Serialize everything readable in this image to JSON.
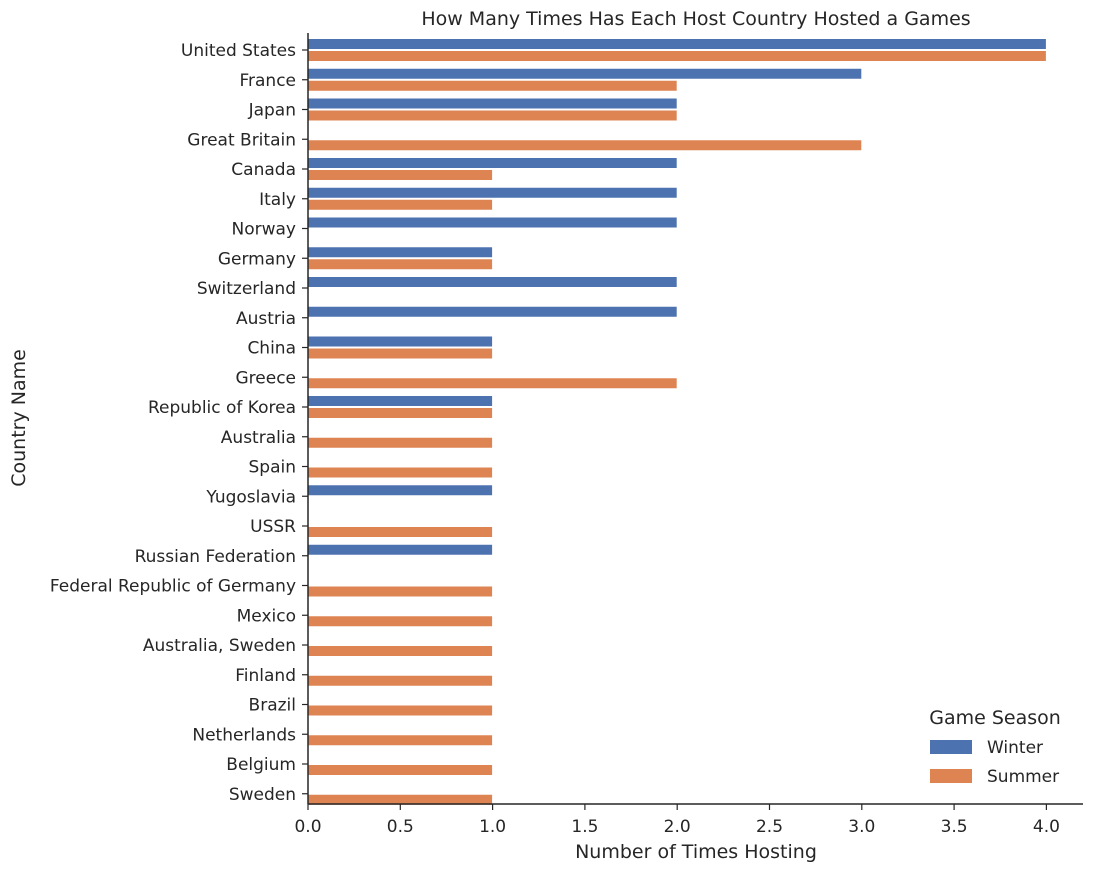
{
  "chart_data": {
    "type": "bar",
    "orientation": "horizontal",
    "title": "How Many Times Has Each Host Country Hosted a Games",
    "xlabel": "Number of Times Hosting",
    "ylabel": "Country Name",
    "xlim": [
      0,
      4.2
    ],
    "xticks": [
      "0.0",
      "0.5",
      "1.0",
      "1.5",
      "2.0",
      "2.5",
      "3.0",
      "3.5",
      "4.0"
    ],
    "grid": false,
    "legend": {
      "title": "Game Season",
      "placement": "lower-right"
    },
    "categories": [
      "United States",
      "France",
      "Japan",
      "Great Britain",
      "Canada",
      "Italy",
      "Norway",
      "Germany",
      "Switzerland",
      "Austria",
      "China",
      "Greece",
      "Republic of Korea",
      "Australia",
      "Spain",
      "Yugoslavia",
      "USSR",
      "Russian Federation",
      "Federal Republic of Germany",
      "Mexico",
      "Australia, Sweden",
      "Finland",
      "Brazil",
      "Netherlands",
      "Belgium",
      "Sweden"
    ],
    "series": [
      {
        "name": "Winter",
        "color": "#4c72b0",
        "values": [
          4,
          3,
          2,
          0,
          2,
          2,
          2,
          1,
          2,
          2,
          1,
          0,
          1,
          0,
          0,
          1,
          0,
          1,
          0,
          0,
          0,
          0,
          0,
          0,
          0,
          0
        ]
      },
      {
        "name": "Summer",
        "color": "#dd8452",
        "values": [
          4,
          2,
          2,
          3,
          1,
          1,
          0,
          1,
          0,
          0,
          1,
          2,
          1,
          1,
          1,
          0,
          1,
          0,
          1,
          1,
          1,
          1,
          1,
          1,
          1,
          1
        ]
      }
    ]
  }
}
